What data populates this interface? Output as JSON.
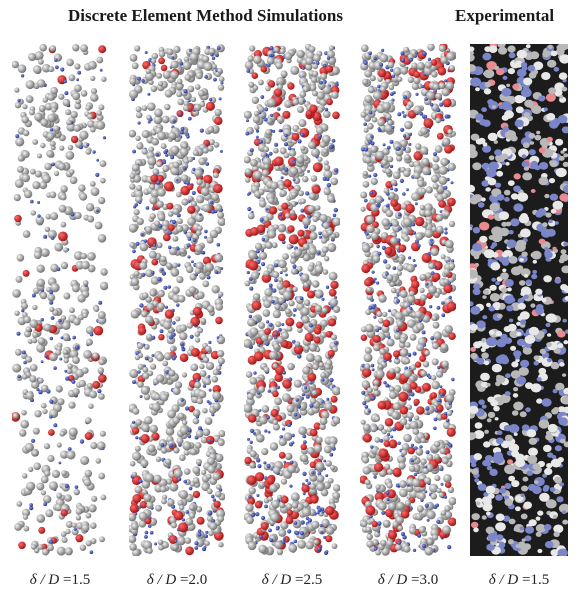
{
  "header": {
    "simulations_title": "Discrete Element Method Simulations",
    "experimental_title": "Experimental"
  },
  "panels": [
    {
      "type": "simulation",
      "caption_symbol": "δ / D",
      "caption_value": "1.5",
      "density": 0.55,
      "red_fraction": 0.05,
      "blue_fraction": 0.18
    },
    {
      "type": "simulation",
      "caption_symbol": "δ / D",
      "caption_value": "2.0",
      "density": 0.82,
      "red_fraction": 0.08,
      "blue_fraction": 0.25
    },
    {
      "type": "simulation",
      "caption_symbol": "δ / D",
      "caption_value": "2.5",
      "density": 0.95,
      "red_fraction": 0.13,
      "blue_fraction": 0.28
    },
    {
      "type": "simulation",
      "caption_symbol": "δ / D",
      "caption_value": "3.0",
      "density": 0.97,
      "red_fraction": 0.14,
      "blue_fraction": 0.28
    },
    {
      "type": "experimental",
      "caption_symbol": "δ / D",
      "caption_value": "1.5",
      "density": 0.9,
      "red_fraction": 0.03,
      "blue_fraction": 0.35
    }
  ],
  "colors": {
    "background": "#ffffff",
    "grain_gray_light": "#d6d6d6",
    "grain_gray_dark": "#6e6e6e",
    "grain_red": "#d42a2a",
    "grain_blue": "#3a4fa8",
    "exp_background": "#1c1c1c",
    "exp_blue": "#7a86c8",
    "exp_pink": "#e88a90",
    "exp_white": "#e8e8e8"
  }
}
